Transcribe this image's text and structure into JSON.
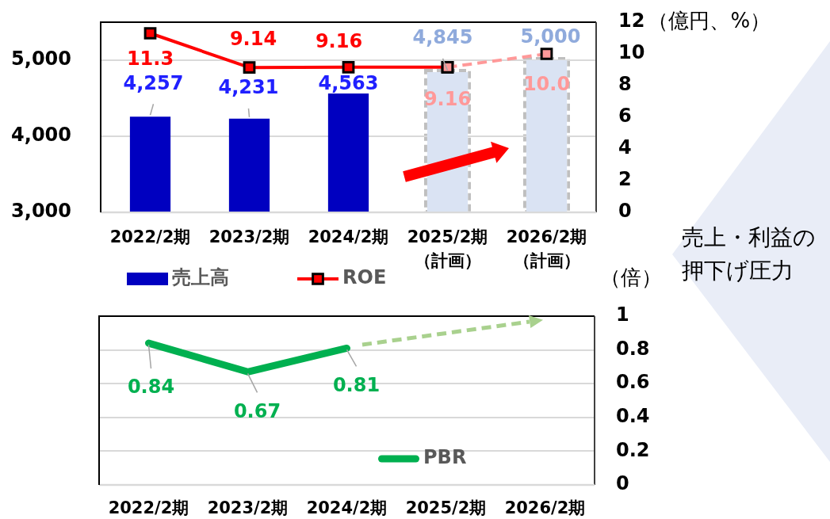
{
  "chart_data": [
    {
      "type": "bar",
      "categories": [
        "2022/2期",
        "2023/2期",
        "2024/2期",
        "2025/2期（計画）",
        "2026/2期（計画）"
      ],
      "series": [
        {
          "name": "売上高",
          "color": "#0000c0",
          "values": [
            4257,
            4231,
            4563,
            null,
            null
          ],
          "value_labels": [
            "4,257",
            "4,231",
            "4,563",
            null,
            null
          ]
        },
        {
          "color": "#dae3f3",
          "line_style": "dashed",
          "values": [
            null,
            null,
            null,
            4845,
            5000
          ],
          "value_labels": [
            null,
            null,
            null,
            "4,845",
            "5,000"
          ]
        },
        {
          "name": "ROE",
          "type": "line",
          "axis": "y2",
          "color": "#ff0000",
          "marker": "square",
          "values": [
            11.3,
            9.14,
            9.16,
            9.16,
            null
          ],
          "value_labels": [
            "11.3",
            "9.14",
            "9.16",
            null,
            null
          ]
        },
        {
          "type": "line",
          "axis": "y2",
          "color": "#ff9999",
          "marker": "square",
          "line_style": "dashed",
          "values": [
            null,
            null,
            null,
            9.16,
            10.0
          ],
          "value_labels": [
            null,
            null,
            null,
            "9.16",
            "10.0"
          ]
        }
      ],
      "stacked": true,
      "ylim": [
        3000,
        5500
      ],
      "yticks": [
        {
          "value": 3000,
          "label": "3,000"
        },
        {
          "value": 4000,
          "label": "4,000"
        },
        {
          "value": 5000,
          "label": "5,000"
        }
      ],
      "y2lim": [
        0,
        12
      ],
      "y2ticks": [
        0,
        2,
        4,
        6,
        8,
        10,
        12
      ],
      "y2label": "（億円、%）",
      "grid": "y",
      "legend": "bottom",
      "annotations": [
        "売上・利益の押下げ圧力"
      ]
    },
    {
      "type": "line",
      "categories": [
        "2022/2期",
        "2023/2期",
        "2024/2期",
        "2025/2期",
        "2026/2期"
      ],
      "series": [
        {
          "name": "PBR",
          "color": "#00b050",
          "values": [
            0.84,
            0.67,
            0.81,
            null,
            null
          ],
          "value_labels": [
            "0.84",
            "0.67",
            "0.81",
            null,
            null
          ]
        }
      ],
      "ylim": [
        0,
        1
      ],
      "yticks": [
        0,
        0.2,
        0.4,
        0.6,
        0.8,
        1
      ],
      "ylabel": "（倍）",
      "grid": "y",
      "legend": "bottom"
    }
  ]
}
